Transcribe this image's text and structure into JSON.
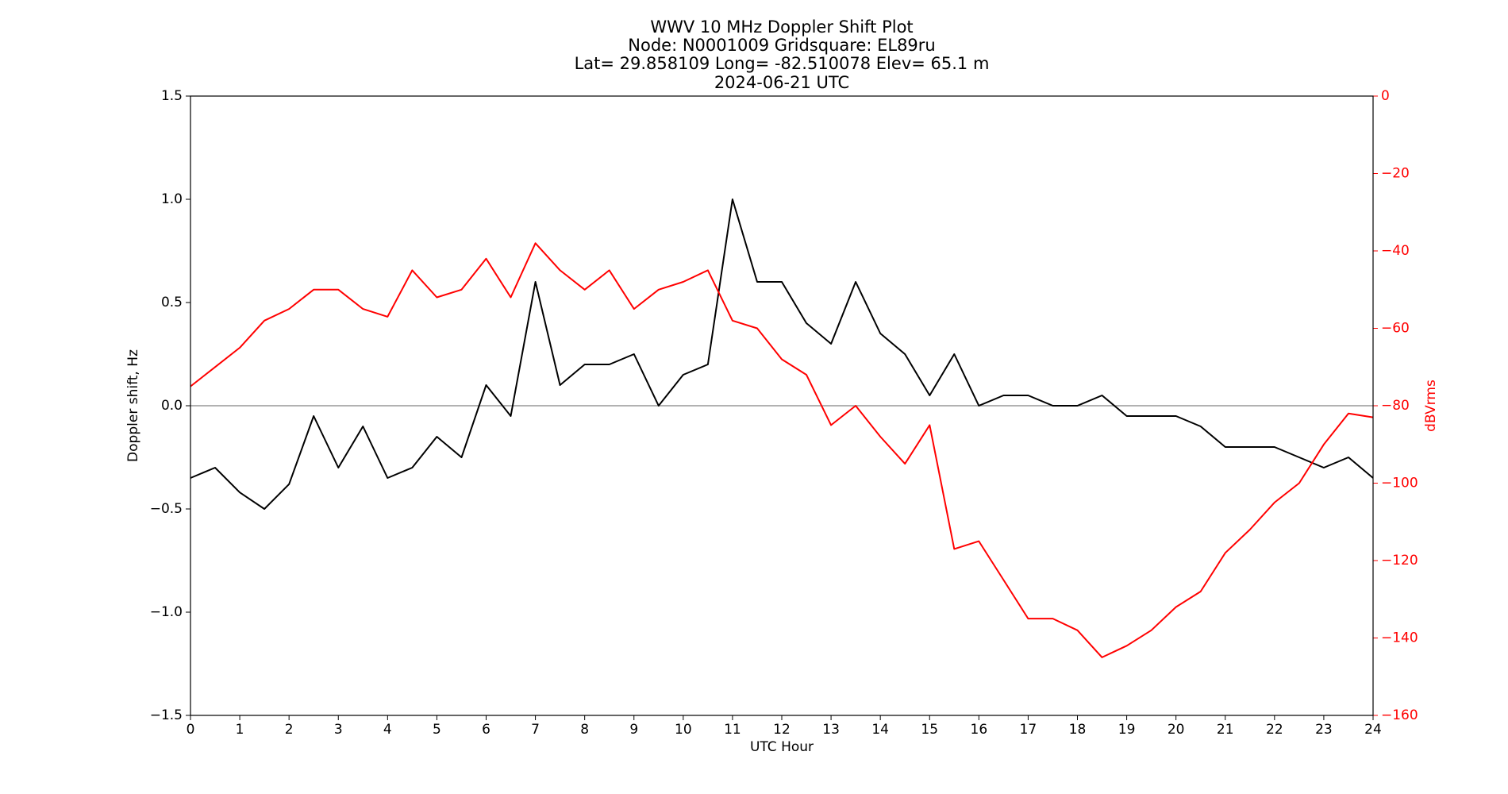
{
  "chart_data": {
    "type": "line",
    "title_lines": [
      "WWV 10 MHz Doppler Shift Plot",
      "Node:  N0001009     Gridsquare:  EL89ru",
      "Lat= 29.858109    Long= -82.510078    Elev= 65.1 m",
      "2024-06-21  UTC"
    ],
    "x_label": "UTC Hour",
    "y_label": "Doppler shift, Hz",
    "y2_label": "dBVrms",
    "x": [
      0,
      0.5,
      1,
      1.5,
      2,
      2.5,
      3,
      3.5,
      4,
      4.5,
      5,
      5.5,
      6,
      6.5,
      7,
      7.5,
      8,
      8.5,
      9,
      9.5,
      10,
      10.5,
      11,
      11.5,
      12,
      12.5,
      13,
      13.5,
      14,
      14.5,
      15,
      15.5,
      16,
      16.5,
      17,
      17.5,
      18,
      18.5,
      19,
      19.5,
      20,
      20.5,
      21,
      21.5,
      22,
      22.5,
      23,
      23.5,
      24
    ],
    "series": [
      {
        "color": "#000000",
        "axis": "y",
        "values": [
          -0.35,
          -0.3,
          -0.42,
          -0.5,
          -0.38,
          -0.05,
          -0.3,
          -0.1,
          -0.35,
          -0.3,
          -0.15,
          -0.25,
          0.1,
          -0.05,
          0.6,
          0.1,
          0.2,
          0.2,
          0.25,
          0.0,
          0.15,
          0.2,
          1.0,
          0.6,
          0.6,
          0.4,
          0.3,
          0.6,
          0.35,
          0.25,
          0.05,
          0.25,
          0.0,
          0.05,
          0.05,
          0.0,
          0.0,
          0.05,
          -0.05,
          -0.05,
          -0.05,
          -0.1,
          -0.2,
          -0.2,
          -0.2,
          -0.25,
          -0.3,
          -0.25,
          -0.35
        ]
      },
      {
        "color": "#ff0000",
        "axis": "y2",
        "values": [
          -75,
          -70,
          -65,
          -58,
          -55,
          -50,
          -50,
          -55,
          -57,
          -45,
          -52,
          -50,
          -42,
          -52,
          -38,
          -45,
          -50,
          -45,
          -55,
          -50,
          -48,
          -45,
          -58,
          -60,
          -68,
          -72,
          -85,
          -80,
          -88,
          -95,
          -85,
          -117,
          -115,
          -125,
          -135,
          -135,
          -138,
          -145,
          -142,
          -138,
          -132,
          -128,
          -118,
          -112,
          -105,
          -100,
          -90,
          -82,
          -83
        ]
      }
    ],
    "hline": 0,
    "xlim": [
      0,
      24
    ],
    "xticks": [
      0,
      1,
      2,
      3,
      4,
      5,
      6,
      7,
      8,
      9,
      10,
      11,
      12,
      13,
      14,
      15,
      16,
      17,
      18,
      19,
      20,
      21,
      22,
      23,
      24
    ],
    "ylim": [
      -1.5,
      1.5
    ],
    "yticks": [
      {
        "value": -1.5,
        "label": "−1.5"
      },
      {
        "value": -1.0,
        "label": "−1.0"
      },
      {
        "value": -0.5,
        "label": "−0.5"
      },
      {
        "value": 0,
        "label": "0.0"
      },
      0.5,
      {
        "value": 1.0,
        "label": "1.0"
      },
      1.5
    ],
    "y2lim": [
      -160,
      0
    ],
    "y2ticks": [
      {
        "value": -160,
        "label": "−160"
      },
      {
        "value": -140,
        "label": "−140"
      },
      {
        "value": -120,
        "label": "−120"
      },
      {
        "value": -100,
        "label": "−100"
      },
      {
        "value": -80,
        "label": "−80"
      },
      {
        "value": -60,
        "label": "−60"
      },
      {
        "value": -40,
        "label": "−40"
      },
      {
        "value": -20,
        "label": "−20"
      },
      0
    ],
    "y2_color": "#ff0000"
  }
}
